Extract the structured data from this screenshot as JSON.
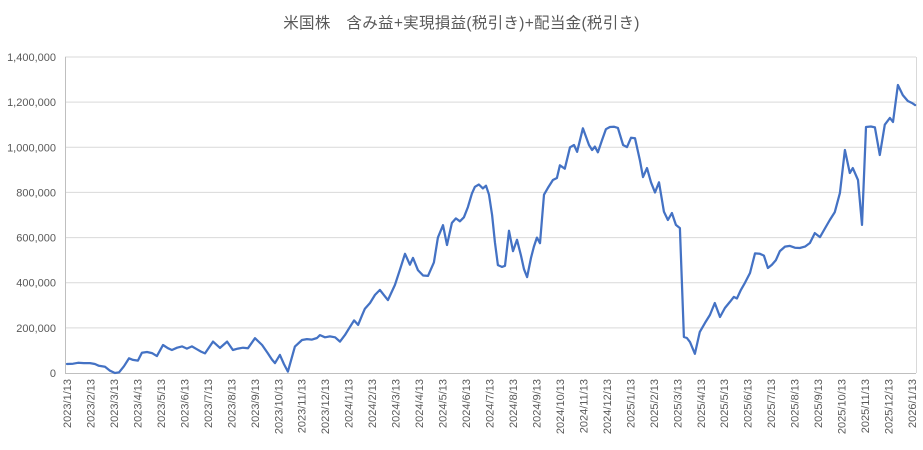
{
  "colors": {
    "background": "#FFFFFF",
    "series_line": "#4472C4",
    "gridline": "#D9D9D9",
    "axis_line": "#BFBFBF",
    "text": "#595959"
  },
  "chart_data": {
    "type": "line",
    "title": "米国株　含み益+実現損益(税引き)+配当金(税引き)",
    "xlabel": "",
    "ylabel": "",
    "legend": "none",
    "grid": true,
    "ylim": [
      0,
      1400000
    ],
    "y_ticks": [
      {
        "value": 0,
        "label": "0"
      },
      {
        "value": 200000,
        "label": "200,000"
      },
      {
        "value": 400000,
        "label": "400,000"
      },
      {
        "value": 600000,
        "label": "600,000"
      },
      {
        "value": 800000,
        "label": "800,000"
      },
      {
        "value": 1000000,
        "label": "1,000,000"
      },
      {
        "value": 1200000,
        "label": "1,200,000"
      },
      {
        "value": 1400000,
        "label": "1,400,000"
      }
    ],
    "x_tick_labels": [
      "2023/1/13",
      "2023/2/13",
      "2023/3/13",
      "2023/4/13",
      "2023/5/13",
      "2023/6/13",
      "2023/7/13",
      "2023/8/13",
      "2023/9/13",
      "2023/10/13",
      "2023/11/13",
      "2023/12/13",
      "2024/1/13",
      "2024/2/13",
      "2024/3/13",
      "2024/4/13",
      "2024/5/13",
      "2024/6/13",
      "2024/7/13",
      "2024/8/13",
      "2024/9/13",
      "2024/10/13",
      "2024/11/13",
      "2024/12/13",
      "2025/1/13",
      "2025/2/13",
      "2025/3/13",
      "2025/4/13",
      "2025/5/13",
      "2025/6/13",
      "2025/7/13",
      "2025/8/13",
      "2025/9/13",
      "2025/10/13",
      "2025/11/13",
      "2025/12/13",
      "2026/1/13"
    ],
    "series": [
      {
        "name": "含み益+実現損益(税引き)+配当金(税引き)",
        "x_unit": "months_from_2023/1/13",
        "points": [
          [
            0.0,
            40000
          ],
          [
            0.26,
            41000
          ],
          [
            0.47,
            45000
          ],
          [
            0.72,
            44000
          ],
          [
            0.98,
            44000
          ],
          [
            1.19,
            40000
          ],
          [
            1.36,
            32000
          ],
          [
            1.62,
            28000
          ],
          [
            1.83,
            10000
          ],
          [
            2.04,
            0
          ],
          [
            2.22,
            3000
          ],
          [
            2.43,
            30000
          ],
          [
            2.64,
            65000
          ],
          [
            2.81,
            58000
          ],
          [
            3.02,
            55000
          ],
          [
            3.19,
            90000
          ],
          [
            3.41,
            93000
          ],
          [
            3.62,
            88000
          ],
          [
            3.83,
            75000
          ],
          [
            4.09,
            124000
          ],
          [
            4.3,
            110000
          ],
          [
            4.47,
            102000
          ],
          [
            4.69,
            112000
          ],
          [
            4.9,
            118000
          ],
          [
            5.11,
            108000
          ],
          [
            5.32,
            118000
          ],
          [
            5.54,
            105000
          ],
          [
            5.71,
            95000
          ],
          [
            5.88,
            87000
          ],
          [
            6.22,
            139000
          ],
          [
            6.52,
            111000
          ],
          [
            6.82,
            139000
          ],
          [
            7.07,
            102000
          ],
          [
            7.28,
            108000
          ],
          [
            7.5,
            112000
          ],
          [
            7.71,
            110000
          ],
          [
            8.01,
            154000
          ],
          [
            8.31,
            124000
          ],
          [
            8.56,
            87000
          ],
          [
            8.73,
            60000
          ],
          [
            8.86,
            44000
          ],
          [
            9.07,
            80000
          ],
          [
            9.24,
            40000
          ],
          [
            9.41,
            6000
          ],
          [
            9.71,
            117000
          ],
          [
            10.01,
            146000
          ],
          [
            10.22,
            150000
          ],
          [
            10.44,
            148000
          ],
          [
            10.65,
            155000
          ],
          [
            10.78,
            168000
          ],
          [
            10.99,
            158000
          ],
          [
            11.2,
            162000
          ],
          [
            11.42,
            158000
          ],
          [
            11.63,
            139000
          ],
          [
            11.84,
            168000
          ],
          [
            12.06,
            205000
          ],
          [
            12.23,
            233000
          ],
          [
            12.4,
            213000
          ],
          [
            12.57,
            255000
          ],
          [
            12.69,
            285000
          ],
          [
            12.91,
            310000
          ],
          [
            13.12,
            346000
          ],
          [
            13.33,
            368000
          ],
          [
            13.5,
            345000
          ],
          [
            13.67,
            323000
          ],
          [
            13.97,
            390000
          ],
          [
            14.19,
            460000
          ],
          [
            14.4,
            528000
          ],
          [
            14.61,
            480000
          ],
          [
            14.74,
            510000
          ],
          [
            14.95,
            456000
          ],
          [
            15.17,
            432000
          ],
          [
            15.38,
            430000
          ],
          [
            15.63,
            490000
          ],
          [
            15.8,
            600000
          ],
          [
            16.02,
            655000
          ],
          [
            16.19,
            567000
          ],
          [
            16.4,
            665000
          ],
          [
            16.57,
            685000
          ],
          [
            16.74,
            672000
          ],
          [
            16.91,
            690000
          ],
          [
            17.08,
            735000
          ],
          [
            17.25,
            795000
          ],
          [
            17.38,
            825000
          ],
          [
            17.55,
            835000
          ],
          [
            17.72,
            818000
          ],
          [
            17.85,
            830000
          ],
          [
            17.98,
            790000
          ],
          [
            18.11,
            700000
          ],
          [
            18.23,
            580000
          ],
          [
            18.36,
            478000
          ],
          [
            18.53,
            470000
          ],
          [
            18.66,
            475000
          ],
          [
            18.83,
            630000
          ],
          [
            19.0,
            540000
          ],
          [
            19.17,
            590000
          ],
          [
            19.34,
            520000
          ],
          [
            19.47,
            460000
          ],
          [
            19.6,
            425000
          ],
          [
            19.77,
            510000
          ],
          [
            19.89,
            560000
          ],
          [
            20.02,
            600000
          ],
          [
            20.15,
            575000
          ],
          [
            20.32,
            790000
          ],
          [
            20.49,
            820000
          ],
          [
            20.7,
            855000
          ],
          [
            20.87,
            864000
          ],
          [
            21.0,
            920000
          ],
          [
            21.21,
            905000
          ],
          [
            21.43,
            1000000
          ],
          [
            21.6,
            1010000
          ],
          [
            21.73,
            980000
          ],
          [
            21.98,
            1084000
          ],
          [
            22.24,
            1010000
          ],
          [
            22.37,
            988000
          ],
          [
            22.49,
            1003000
          ],
          [
            22.62,
            978000
          ],
          [
            22.79,
            1030000
          ],
          [
            22.96,
            1080000
          ],
          [
            23.13,
            1090000
          ],
          [
            23.3,
            1091000
          ],
          [
            23.47,
            1086000
          ],
          [
            23.69,
            1010000
          ],
          [
            23.86,
            1001000
          ],
          [
            24.03,
            1042000
          ],
          [
            24.2,
            1040000
          ],
          [
            24.41,
            940000
          ],
          [
            24.54,
            868000
          ],
          [
            24.71,
            908000
          ],
          [
            24.88,
            845000
          ],
          [
            25.05,
            800000
          ],
          [
            25.22,
            845000
          ],
          [
            25.43,
            715000
          ],
          [
            25.6,
            678000
          ],
          [
            25.77,
            709000
          ],
          [
            25.94,
            656000
          ],
          [
            26.11,
            642000
          ],
          [
            26.28,
            160000
          ],
          [
            26.41,
            155000
          ],
          [
            26.54,
            137000
          ],
          [
            26.75,
            85000
          ],
          [
            26.96,
            182000
          ],
          [
            27.18,
            222000
          ],
          [
            27.39,
            257000
          ],
          [
            27.6,
            310000
          ],
          [
            27.82,
            248000
          ],
          [
            28.03,
            288000
          ],
          [
            28.24,
            315000
          ],
          [
            28.41,
            337000
          ],
          [
            28.54,
            330000
          ],
          [
            28.71,
            368000
          ],
          [
            28.88,
            399000
          ],
          [
            29.1,
            443000
          ],
          [
            29.31,
            530000
          ],
          [
            29.52,
            528000
          ],
          [
            29.69,
            520000
          ],
          [
            29.86,
            465000
          ],
          [
            30.03,
            480000
          ],
          [
            30.2,
            500000
          ],
          [
            30.37,
            540000
          ],
          [
            30.59,
            560000
          ],
          [
            30.8,
            563000
          ],
          [
            31.01,
            555000
          ],
          [
            31.22,
            554000
          ],
          [
            31.44,
            560000
          ],
          [
            31.65,
            576000
          ],
          [
            31.86,
            620000
          ],
          [
            32.08,
            602000
          ],
          [
            32.29,
            640000
          ],
          [
            32.5,
            678000
          ],
          [
            32.71,
            713000
          ],
          [
            32.93,
            797000
          ],
          [
            33.14,
            988000
          ],
          [
            33.35,
            886000
          ],
          [
            33.48,
            908000
          ],
          [
            33.7,
            855000
          ],
          [
            33.87,
            656000
          ],
          [
            34.04,
            1090000
          ],
          [
            34.25,
            1092000
          ],
          [
            34.42,
            1088000
          ],
          [
            34.63,
            966000
          ],
          [
            34.84,
            1100000
          ],
          [
            35.06,
            1130000
          ],
          [
            35.19,
            1112000
          ],
          [
            35.4,
            1276000
          ],
          [
            35.61,
            1231000
          ],
          [
            35.82,
            1205000
          ],
          [
            36.0,
            1196000
          ],
          [
            36.13,
            1187000
          ]
        ]
      }
    ]
  }
}
